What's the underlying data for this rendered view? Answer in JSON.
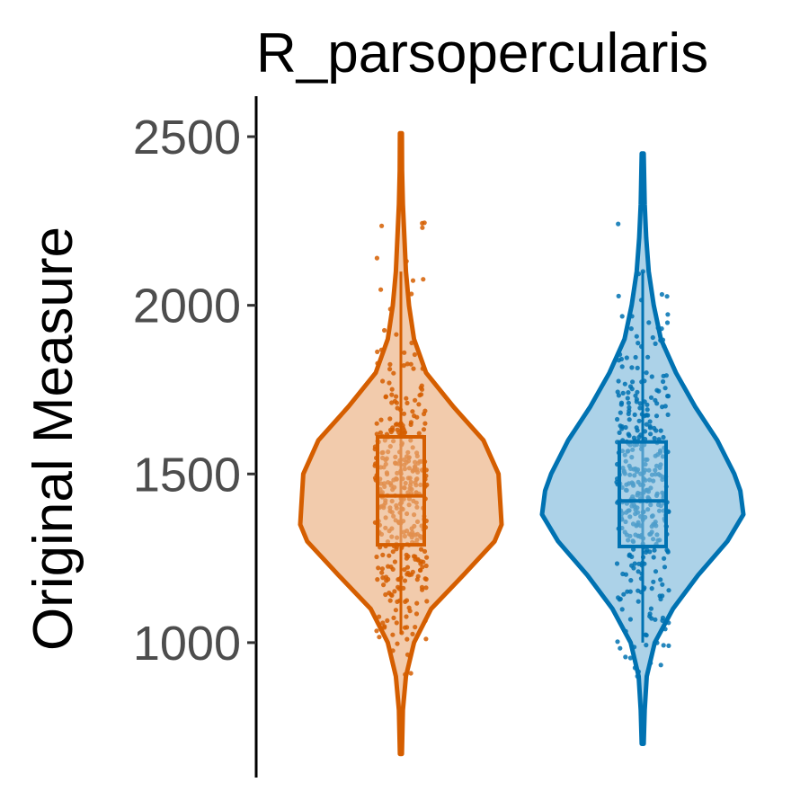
{
  "chart_data": {
    "type": "violin",
    "title": "R_parsopercularis",
    "xlabel": "",
    "ylabel": "Original Measure",
    "ylim": [
      600,
      2620
    ],
    "yticks": [
      1000,
      1500,
      2000,
      2500
    ],
    "ytick_labels": [
      "1000",
      "1500",
      "2000",
      "2500"
    ],
    "grid": false,
    "legend": "none",
    "series": [
      {
        "color": "#D55E00",
        "fill": "#F2CBAC",
        "box": {
          "min": 1290,
          "q1": 1290,
          "median": 1435,
          "q3": 1610,
          "max": 1610
        },
        "whisker_low": 1025,
        "whisker_high": 2100,
        "range": [
          670,
          2510
        ],
        "density": [
          [
            670,
            0.01
          ],
          [
            800,
            0.02
          ],
          [
            900,
            0.05
          ],
          [
            1000,
            0.13
          ],
          [
            1100,
            0.3
          ],
          [
            1200,
            0.62
          ],
          [
            1300,
            0.93
          ],
          [
            1350,
            1.0
          ],
          [
            1400,
            0.99
          ],
          [
            1500,
            0.97
          ],
          [
            1600,
            0.82
          ],
          [
            1700,
            0.52
          ],
          [
            1800,
            0.25
          ],
          [
            1900,
            0.13
          ],
          [
            2000,
            0.08
          ],
          [
            2100,
            0.05
          ],
          [
            2200,
            0.035
          ],
          [
            2300,
            0.02
          ],
          [
            2400,
            0.012
          ],
          [
            2510,
            0.01
          ]
        ]
      },
      {
        "color": "#0072B2",
        "fill": "#ACD2E8",
        "box": {
          "min": 1285,
          "q1": 1285,
          "median": 1420,
          "q3": 1595,
          "max": 1595
        },
        "whisker_low": 1000,
        "whisker_high": 2100,
        "range": [
          700,
          2450
        ],
        "density": [
          [
            700,
            0.01
          ],
          [
            800,
            0.02
          ],
          [
            900,
            0.04
          ],
          [
            1000,
            0.12
          ],
          [
            1100,
            0.3
          ],
          [
            1200,
            0.55
          ],
          [
            1300,
            0.84
          ],
          [
            1380,
            1.0
          ],
          [
            1450,
            0.97
          ],
          [
            1500,
            0.91
          ],
          [
            1600,
            0.74
          ],
          [
            1700,
            0.52
          ],
          [
            1800,
            0.33
          ],
          [
            1900,
            0.18
          ],
          [
            2000,
            0.11
          ],
          [
            2100,
            0.06
          ],
          [
            2200,
            0.035
          ],
          [
            2300,
            0.02
          ],
          [
            2450,
            0.01
          ]
        ]
      }
    ]
  }
}
